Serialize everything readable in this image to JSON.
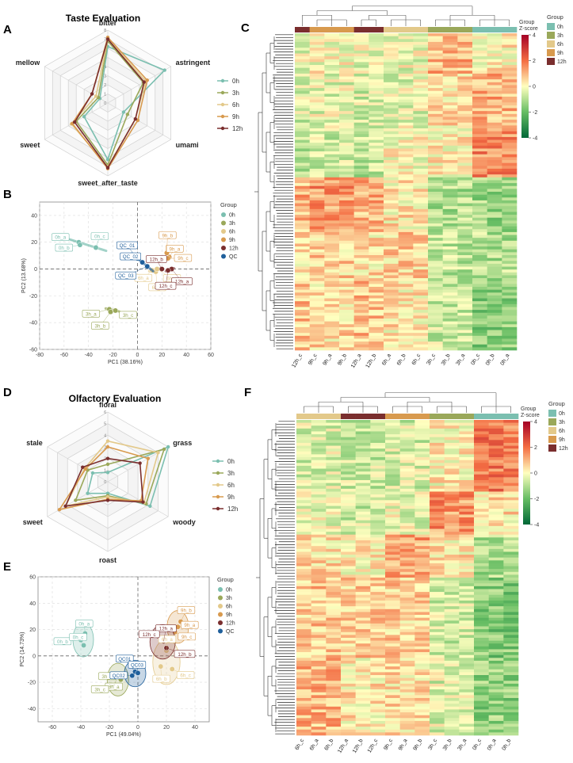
{
  "figure": {
    "panel_labels": [
      "A",
      "B",
      "C",
      "D",
      "E",
      "F"
    ],
    "taste_title": "Taste Evaluation",
    "olfactory_title": "Olfactory Evaluation",
    "group_labels": [
      "0h",
      "3h",
      "6h",
      "9h",
      "12h"
    ],
    "group_colors": [
      "#7bbfb0",
      "#9aa85a",
      "#e3c98a",
      "#d89a4e",
      "#7a2e2e"
    ],
    "qc_label": "QC",
    "qc_color": "#1f5f9b",
    "legend_title": "Group",
    "heat_group_title": "Group",
    "zscore_title": "Z-score",
    "zscore_ticks": [
      "4",
      "2",
      "0",
      "-2",
      "-4"
    ]
  },
  "chart_data": [
    {
      "type": "radar",
      "title": "Taste Evaluation",
      "axes": [
        "bitter",
        "astringent",
        "umami",
        "sweet_after_taste",
        "sweet",
        "mellow"
      ],
      "rlim": [
        0,
        8
      ],
      "ticks": [
        "0",
        "1",
        "2",
        "3",
        "4",
        "5",
        "6",
        "7",
        "8"
      ],
      "series": [
        {
          "name": "0h",
          "values": [
            6.2,
            7.2,
            2.0,
            6.2,
            3.0,
            1.0
          ]
        },
        {
          "name": "3h",
          "values": [
            6.8,
            4.5,
            2.5,
            6.8,
            4.0,
            1.2
          ]
        },
        {
          "name": "6h",
          "values": [
            7.0,
            4.8,
            3.5,
            7.0,
            4.6,
            1.5
          ]
        },
        {
          "name": "9h",
          "values": [
            7.2,
            5.0,
            3.8,
            7.2,
            4.5,
            2.0
          ]
        },
        {
          "name": "12h",
          "values": [
            7.0,
            4.6,
            3.5,
            7.1,
            4.2,
            2.0
          ]
        }
      ]
    },
    {
      "type": "scatter",
      "xlabel": "PC1 (38.16%)",
      "ylabel": "PC2 (13.68%)",
      "xlim": [
        -80,
        60
      ],
      "ylim": [
        -60,
        50
      ],
      "xticks": [
        -80,
        -60,
        -40,
        -20,
        0,
        20,
        40,
        60
      ],
      "yticks": [
        -60,
        -40,
        -20,
        0,
        20,
        40
      ],
      "series": [
        {
          "name": "0h",
          "points": [
            {
              "label": "0h_a",
              "x": -48,
              "y": 20
            },
            {
              "label": "0h_b",
              "x": -47,
              "y": 18
            },
            {
              "label": "0h_c",
              "x": -34,
              "y": 16
            }
          ]
        },
        {
          "name": "3h",
          "points": [
            {
              "label": "3h_a",
              "x": -23,
              "y": -30
            },
            {
              "label": "3h_b",
              "x": -22,
              "y": -32
            },
            {
              "label": "3h_c",
              "x": -18,
              "y": -31
            }
          ]
        },
        {
          "name": "6h",
          "points": [
            {
              "label": "6h_a",
              "x": 12,
              "y": -1
            },
            {
              "label": "6h_b",
              "x": 15,
              "y": -2
            },
            {
              "label": "6h_c",
              "x": 16,
              "y": 0
            }
          ]
        },
        {
          "name": "9h",
          "points": [
            {
              "label": "9h_a",
              "x": 26,
              "y": 9
            },
            {
              "label": "9h_b",
              "x": 24,
              "y": 12
            },
            {
              "label": "9h_c",
              "x": 25,
              "y": 8
            }
          ]
        },
        {
          "name": "12h",
          "points": [
            {
              "label": "12h_a",
              "x": 28,
              "y": 0
            },
            {
              "label": "12h_b",
              "x": 20,
              "y": 0
            },
            {
              "label": "12h_c",
              "x": 25,
              "y": -1
            }
          ]
        },
        {
          "name": "QC",
          "points": [
            {
              "label": "QC_01",
              "x": 0,
              "y": 8
            },
            {
              "label": "QC_02",
              "x": 4,
              "y": 5
            },
            {
              "label": "QC_03",
              "x": 8,
              "y": 2
            }
          ]
        }
      ]
    },
    {
      "type": "heatmap",
      "colorbar": {
        "min": -4,
        "max": 4,
        "ticks": [
          4,
          2,
          0,
          -2,
          -4
        ],
        "title": "Z-score"
      },
      "columns": [
        "12h_c",
        "9h_c",
        "9h_a",
        "9h_b",
        "12h_a",
        "12h_b",
        "6h_a",
        "6h_b",
        "6h_c",
        "3h_c",
        "3h_b",
        "3h_a",
        "0h_c",
        "0h_b",
        "0h_a"
      ],
      "column_groups": [
        "12h",
        "9h",
        "9h",
        "9h",
        "12h",
        "12h",
        "6h",
        "6h",
        "6h",
        "3h",
        "3h",
        "3h",
        "0h",
        "0h",
        "0h"
      ]
    },
    {
      "type": "radar",
      "title": "Olfactory Evaluation",
      "axes": [
        "floral",
        "grass",
        "woody",
        "roast",
        "sweet",
        "stale"
      ],
      "rlim": [
        0,
        6
      ],
      "ticks": [
        "0",
        "1",
        "2",
        "3",
        "4",
        "5",
        "6"
      ],
      "series": [
        {
          "name": "0h",
          "values": [
            0.8,
            6.0,
            4.2,
            1.0,
            2.0,
            1.5
          ]
        },
        {
          "name": "3h",
          "values": [
            1.5,
            5.6,
            3.8,
            1.2,
            3.2,
            2.0
          ]
        },
        {
          "name": "6h",
          "values": [
            3.5,
            5.0,
            3.6,
            1.3,
            4.2,
            2.3
          ]
        },
        {
          "name": "9h",
          "values": [
            3.0,
            4.0,
            3.3,
            1.5,
            4.8,
            2.2
          ]
        },
        {
          "name": "12h",
          "values": [
            2.0,
            3.2,
            3.5,
            1.6,
            4.2,
            2.5
          ]
        }
      ]
    },
    {
      "type": "scatter",
      "xlabel": "PC1 (49.04%)",
      "ylabel": "PC2 (14.73%)",
      "xlim": [
        -70,
        50
      ],
      "ylim": [
        -50,
        60
      ],
      "xticks": [
        -60,
        -40,
        -20,
        0,
        20,
        40
      ],
      "yticks": [
        -40,
        -20,
        0,
        20,
        40,
        60
      ],
      "series": [
        {
          "name": "0h",
          "points": [
            {
              "label": "0h_a",
              "x": -37,
              "y": 17
            },
            {
              "label": "0h_b",
              "x": -40,
              "y": 12
            },
            {
              "label": "0h_c",
              "x": -38,
              "y": 8
            }
          ]
        },
        {
          "name": "3h",
          "points": [
            {
              "label": "3h_a",
              "x": -14,
              "y": -14
            },
            {
              "label": "3h_b",
              "x": -12,
              "y": -18
            },
            {
              "label": "3h_c",
              "x": -16,
              "y": -22
            }
          ]
        },
        {
          "name": "6h",
          "points": [
            {
              "label": "6h_a",
              "x": 20,
              "y": 4
            },
            {
              "label": "6h_b",
              "x": 16,
              "y": -8
            },
            {
              "label": "6h_c",
              "x": 24,
              "y": -10
            }
          ]
        },
        {
          "name": "9h",
          "points": [
            {
              "label": "9h_a",
              "x": 28,
              "y": 22
            },
            {
              "label": "9h_b",
              "x": 30,
              "y": 26
            },
            {
              "label": "9h_c",
              "x": 26,
              "y": 18
            }
          ]
        },
        {
          "name": "12h",
          "points": [
            {
              "label": "12h_a",
              "x": 18,
              "y": 11
            },
            {
              "label": "12h_b",
              "x": 20,
              "y": 6
            },
            {
              "label": "12h_c",
              "x": 14,
              "y": 15
            }
          ]
        },
        {
          "name": "QC",
          "points": [
            {
              "label": "QC01",
              "x": -2,
              "y": -12
            },
            {
              "label": "QC02",
              "x": -4,
              "y": -15
            },
            {
              "label": "QC03",
              "x": 0,
              "y": -13
            }
          ]
        }
      ]
    },
    {
      "type": "heatmap",
      "colorbar": {
        "min": -4,
        "max": 4,
        "ticks": [
          4,
          2,
          0,
          -2,
          -4
        ],
        "title": "Z-score"
      },
      "columns": [
        "6h_c",
        "6h_a",
        "6h_b",
        "12h_a",
        "12h_b",
        "12h_c",
        "9h_c",
        "9h_a",
        "9h_b",
        "3h_c",
        "3h_b",
        "3h_a",
        "0h_c",
        "0h_a",
        "0h_b"
      ],
      "column_groups": [
        "6h",
        "6h",
        "6h",
        "12h",
        "12h",
        "12h",
        "9h",
        "9h",
        "9h",
        "3h",
        "3h",
        "3h",
        "0h",
        "0h",
        "0h"
      ]
    }
  ]
}
